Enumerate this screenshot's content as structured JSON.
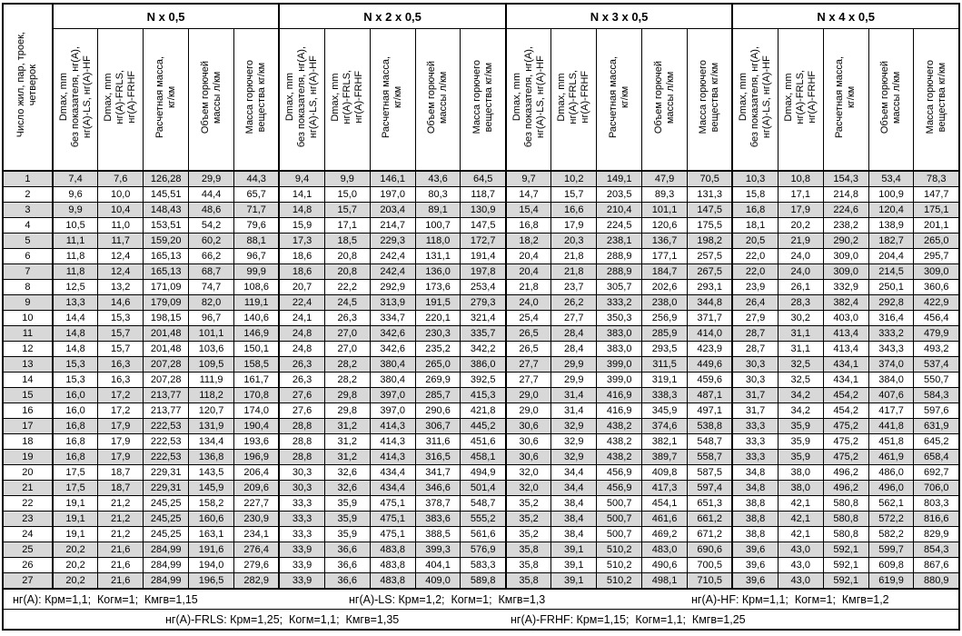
{
  "table": {
    "corner_header": "Число жил, пар, троек,\nчетверок",
    "groups": [
      {
        "title": "N x 0,5"
      },
      {
        "title": "N x 2 x 0,5"
      },
      {
        "title": "N x 3 x 0,5"
      },
      {
        "title": "N x 4 x 0,5"
      }
    ],
    "subheaders": [
      "Dmax, mm\nбез показателя, нг(А),\nнг(А)-LS, нг(А)-HF",
      "Dmax, mm\nнг(А)-FRLS,\nнг(А)-FRHF",
      "Расчетная масса,\nкг/км",
      "Объем горючей\nмассы л/км",
      "Масса горючего\nвещества кг/км"
    ],
    "rows": [
      [
        "1",
        "7,4",
        "7,6",
        "126,28",
        "29,9",
        "44,3",
        "9,4",
        "9,9",
        "146,1",
        "43,6",
        "64,5",
        "9,7",
        "10,2",
        "149,1",
        "47,9",
        "70,5",
        "10,3",
        "10,8",
        "154,3",
        "53,4",
        "78,3"
      ],
      [
        "2",
        "9,6",
        "10,0",
        "145,51",
        "44,4",
        "65,7",
        "14,1",
        "15,0",
        "197,0",
        "80,3",
        "118,7",
        "14,7",
        "15,7",
        "203,5",
        "89,3",
        "131,3",
        "15,8",
        "17,1",
        "214,8",
        "100,9",
        "147,7"
      ],
      [
        "3",
        "9,9",
        "10,4",
        "148,43",
        "48,6",
        "71,7",
        "14,8",
        "15,7",
        "203,4",
        "89,1",
        "130,9",
        "15,4",
        "16,6",
        "210,4",
        "101,1",
        "147,5",
        "16,8",
        "17,9",
        "224,6",
        "120,4",
        "175,1"
      ],
      [
        "4",
        "10,5",
        "11,0",
        "153,51",
        "54,2",
        "79,6",
        "15,9",
        "17,1",
        "214,7",
        "100,7",
        "147,5",
        "16,8",
        "17,9",
        "224,5",
        "120,6",
        "175,5",
        "18,1",
        "20,2",
        "238,2",
        "138,9",
        "201,1"
      ],
      [
        "5",
        "11,1",
        "11,7",
        "159,20",
        "60,2",
        "88,1",
        "17,3",
        "18,5",
        "229,3",
        "118,0",
        "172,7",
        "18,2",
        "20,3",
        "238,1",
        "136,7",
        "198,2",
        "20,5",
        "21,9",
        "290,2",
        "182,7",
        "265,0"
      ],
      [
        "6",
        "11,8",
        "12,4",
        "165,13",
        "66,2",
        "96,7",
        "18,6",
        "20,8",
        "242,4",
        "131,1",
        "191,4",
        "20,4",
        "21,8",
        "288,9",
        "177,1",
        "257,5",
        "22,0",
        "24,0",
        "309,0",
        "204,4",
        "295,7"
      ],
      [
        "7",
        "11,8",
        "12,4",
        "165,13",
        "68,7",
        "99,9",
        "18,6",
        "20,8",
        "242,4",
        "136,0",
        "197,8",
        "20,4",
        "21,8",
        "288,9",
        "184,7",
        "267,5",
        "22,0",
        "24,0",
        "309,0",
        "214,5",
        "309,0"
      ],
      [
        "8",
        "12,5",
        "13,2",
        "171,09",
        "74,7",
        "108,6",
        "20,7",
        "22,2",
        "292,9",
        "173,6",
        "253,4",
        "21,8",
        "23,7",
        "305,7",
        "202,6",
        "293,1",
        "23,9",
        "26,1",
        "332,9",
        "250,1",
        "360,6"
      ],
      [
        "9",
        "13,3",
        "14,6",
        "179,09",
        "82,0",
        "119,1",
        "22,4",
        "24,5",
        "313,9",
        "191,5",
        "279,3",
        "24,0",
        "26,2",
        "333,2",
        "238,0",
        "344,8",
        "26,4",
        "28,3",
        "382,4",
        "292,8",
        "422,9"
      ],
      [
        "10",
        "14,4",
        "15,3",
        "198,15",
        "96,7",
        "140,6",
        "24,1",
        "26,3",
        "334,7",
        "220,1",
        "321,4",
        "25,4",
        "27,7",
        "350,3",
        "256,9",
        "371,7",
        "27,9",
        "30,2",
        "403,0",
        "316,4",
        "456,4"
      ],
      [
        "11",
        "14,8",
        "15,7",
        "201,48",
        "101,1",
        "146,9",
        "24,8",
        "27,0",
        "342,6",
        "230,3",
        "335,7",
        "26,5",
        "28,4",
        "383,0",
        "285,9",
        "414,0",
        "28,7",
        "31,1",
        "413,4",
        "333,2",
        "479,9"
      ],
      [
        "12",
        "14,8",
        "15,7",
        "201,48",
        "103,6",
        "150,1",
        "24,8",
        "27,0",
        "342,6",
        "235,2",
        "342,2",
        "26,5",
        "28,4",
        "383,0",
        "293,5",
        "423,9",
        "28,7",
        "31,1",
        "413,4",
        "343,3",
        "493,2"
      ],
      [
        "13",
        "15,3",
        "16,3",
        "207,28",
        "109,5",
        "158,5",
        "26,3",
        "28,2",
        "380,4",
        "265,0",
        "386,0",
        "27,7",
        "29,9",
        "399,0",
        "311,5",
        "449,6",
        "30,3",
        "32,5",
        "434,1",
        "374,0",
        "537,4"
      ],
      [
        "14",
        "15,3",
        "16,3",
        "207,28",
        "111,9",
        "161,7",
        "26,3",
        "28,2",
        "380,4",
        "269,9",
        "392,5",
        "27,7",
        "29,9",
        "399,0",
        "319,1",
        "459,6",
        "30,3",
        "32,5",
        "434,1",
        "384,0",
        "550,7"
      ],
      [
        "15",
        "16,0",
        "17,2",
        "213,77",
        "118,2",
        "170,8",
        "27,6",
        "29,8",
        "397,0",
        "285,7",
        "415,3",
        "29,0",
        "31,4",
        "416,9",
        "338,3",
        "487,1",
        "31,7",
        "34,2",
        "454,2",
        "407,6",
        "584,3"
      ],
      [
        "16",
        "16,0",
        "17,2",
        "213,77",
        "120,7",
        "174,0",
        "27,6",
        "29,8",
        "397,0",
        "290,6",
        "421,8",
        "29,0",
        "31,4",
        "416,9",
        "345,9",
        "497,1",
        "31,7",
        "34,2",
        "454,2",
        "417,7",
        "597,6"
      ],
      [
        "17",
        "16,8",
        "17,9",
        "222,53",
        "131,9",
        "190,4",
        "28,8",
        "31,2",
        "414,3",
        "306,7",
        "445,2",
        "30,6",
        "32,9",
        "438,2",
        "374,6",
        "538,8",
        "33,3",
        "35,9",
        "475,2",
        "441,8",
        "631,9"
      ],
      [
        "18",
        "16,8",
        "17,9",
        "222,53",
        "134,4",
        "193,6",
        "28,8",
        "31,2",
        "414,3",
        "311,6",
        "451,6",
        "30,6",
        "32,9",
        "438,2",
        "382,1",
        "548,7",
        "33,3",
        "35,9",
        "475,2",
        "451,8",
        "645,2"
      ],
      [
        "19",
        "16,8",
        "17,9",
        "222,53",
        "136,8",
        "196,9",
        "28,8",
        "31,2",
        "414,3",
        "316,5",
        "458,1",
        "30,6",
        "32,9",
        "438,2",
        "389,7",
        "558,7",
        "33,3",
        "35,9",
        "475,2",
        "461,9",
        "658,4"
      ],
      [
        "20",
        "17,5",
        "18,7",
        "229,31",
        "143,5",
        "206,4",
        "30,3",
        "32,6",
        "434,4",
        "341,7",
        "494,9",
        "32,0",
        "34,4",
        "456,9",
        "409,8",
        "587,5",
        "34,8",
        "38,0",
        "496,2",
        "486,0",
        "692,7"
      ],
      [
        "21",
        "17,5",
        "18,7",
        "229,31",
        "145,9",
        "209,6",
        "30,3",
        "32,6",
        "434,4",
        "346,6",
        "501,4",
        "32,0",
        "34,4",
        "456,9",
        "417,3",
        "597,4",
        "34,8",
        "38,0",
        "496,2",
        "496,0",
        "706,0"
      ],
      [
        "22",
        "19,1",
        "21,2",
        "245,25",
        "158,2",
        "227,7",
        "33,3",
        "35,9",
        "475,1",
        "378,7",
        "548,7",
        "35,2",
        "38,4",
        "500,7",
        "454,1",
        "651,3",
        "38,8",
        "42,1",
        "580,8",
        "562,1",
        "803,3"
      ],
      [
        "23",
        "19,1",
        "21,2",
        "245,25",
        "160,6",
        "230,9",
        "33,3",
        "35,9",
        "475,1",
        "383,6",
        "555,2",
        "35,2",
        "38,4",
        "500,7",
        "461,6",
        "661,2",
        "38,8",
        "42,1",
        "580,8",
        "572,2",
        "816,6"
      ],
      [
        "24",
        "19,1",
        "21,2",
        "245,25",
        "163,1",
        "234,1",
        "33,3",
        "35,9",
        "475,1",
        "388,5",
        "561,6",
        "35,2",
        "38,4",
        "500,7",
        "469,2",
        "671,2",
        "38,8",
        "42,1",
        "580,8",
        "582,2",
        "829,9"
      ],
      [
        "25",
        "20,2",
        "21,6",
        "284,99",
        "191,6",
        "276,4",
        "33,9",
        "36,6",
        "483,8",
        "399,3",
        "576,9",
        "35,8",
        "39,1",
        "510,2",
        "483,0",
        "690,6",
        "39,6",
        "43,0",
        "592,1",
        "599,7",
        "854,3"
      ],
      [
        "26",
        "20,2",
        "21,6",
        "284,99",
        "194,0",
        "279,6",
        "33,9",
        "36,6",
        "483,8",
        "404,1",
        "583,3",
        "35,8",
        "39,1",
        "510,2",
        "490,6",
        "700,5",
        "39,6",
        "43,0",
        "592,1",
        "609,8",
        "867,6"
      ],
      [
        "27",
        "20,2",
        "21,6",
        "284,99",
        "196,5",
        "282,9",
        "33,9",
        "36,6",
        "483,8",
        "409,0",
        "589,8",
        "35,8",
        "39,1",
        "510,2",
        "498,1",
        "710,5",
        "39,6",
        "43,0",
        "592,1",
        "619,9",
        "880,9"
      ]
    ],
    "footer": {
      "line1": [
        "нг(А): Крм=1,1;  Когм=1;  Кмгв=1,15",
        "нг(А)-LS: Крм=1,2;  Когм=1;  Кмгв=1,3",
        "нг(А)-HF: Крм=1,1;  Когм=1;  Кмгв=1,2"
      ],
      "line2": [
        "нг(А)-FRLS: Крм=1,25;  Когм=1,1;  Кмгв=1,35",
        "нг(А)-FRHF: Крм=1,15;  Когм=1,1;  Кмгв=1,25"
      ]
    },
    "colors": {
      "stripe": "#d8d8d8",
      "border": "#000000",
      "background": "#ffffff"
    }
  }
}
